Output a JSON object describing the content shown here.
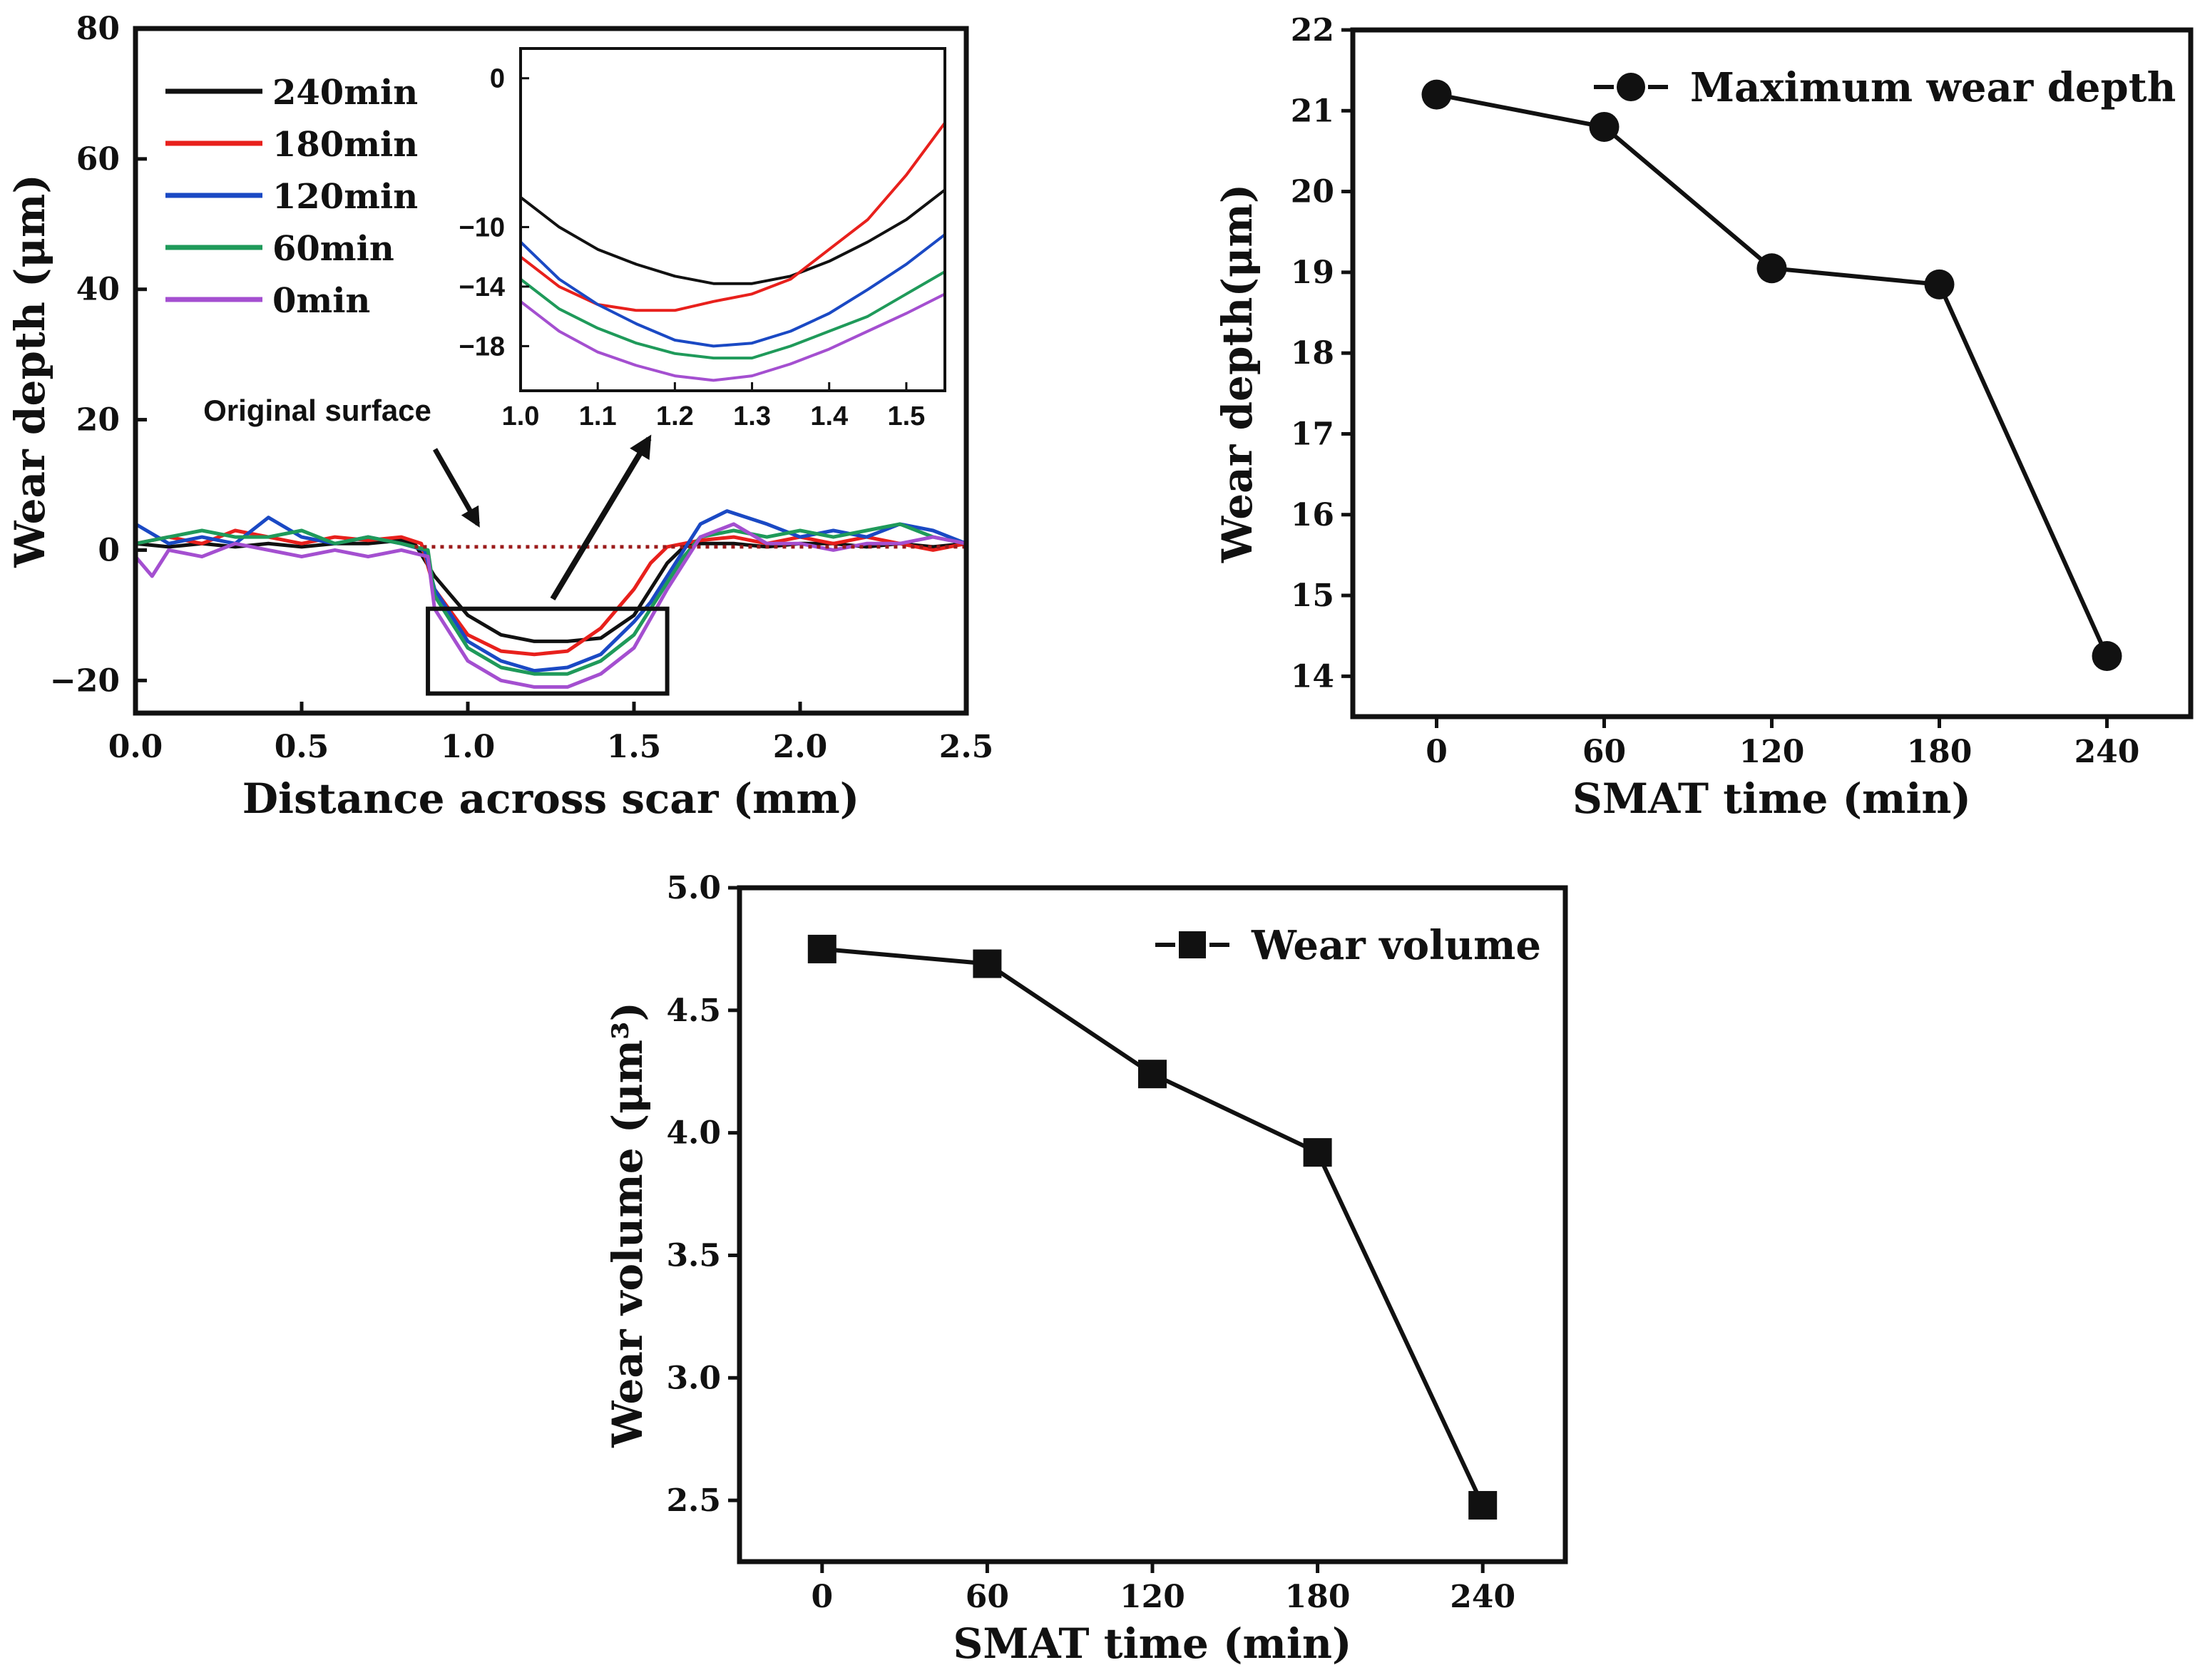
{
  "chart_data": [
    {
      "id": "profiles",
      "type": "line",
      "title": "",
      "xlabel": "Distance across scar (mm)",
      "ylabel": "Wear depth (μm)",
      "xlim": [
        0,
        2.5
      ],
      "ylim": [
        -25,
        80
      ],
      "xticks": [
        "0.0",
        "0.5",
        "1.0",
        "1.5",
        "2.0",
        "2.5"
      ],
      "yticks": [
        "−20",
        "0",
        "20",
        "40",
        "60",
        "80"
      ],
      "annotation": "Original surface",
      "original_surface_y": 0.5,
      "zoom_box": {
        "x": [
          0.88,
          1.6
        ],
        "y": [
          -22,
          -9
        ]
      },
      "series": [
        {
          "name": "240min",
          "color": "#111111",
          "x": [
            0,
            0.1,
            0.2,
            0.3,
            0.4,
            0.5,
            0.6,
            0.7,
            0.8,
            0.84,
            0.9,
            1.0,
            1.1,
            1.2,
            1.3,
            1.4,
            1.5,
            1.55,
            1.6,
            1.65,
            1.7,
            1.8,
            1.9,
            2.0,
            2.1,
            2.2,
            2.3,
            2.4,
            2.5
          ],
          "y": [
            1,
            0.5,
            1,
            0.5,
            1,
            0.5,
            1,
            1,
            1.5,
            1,
            -4,
            -10,
            -13,
            -14,
            -14,
            -13.5,
            -10,
            -6,
            -2,
            0.5,
            1,
            1,
            0.5,
            1,
            1,
            0.5,
            1,
            0.5,
            1
          ]
        },
        {
          "name": "180min",
          "color": "#e8201c",
          "x": [
            0,
            0.1,
            0.2,
            0.3,
            0.4,
            0.5,
            0.6,
            0.7,
            0.8,
            0.86,
            0.9,
            1.0,
            1.1,
            1.2,
            1.3,
            1.4,
            1.5,
            1.55,
            1.6,
            1.7,
            1.8,
            1.9,
            2.0,
            2.1,
            2.2,
            2.3,
            2.4,
            2.5
          ],
          "y": [
            1,
            2,
            1,
            3,
            2,
            1,
            2,
            1.5,
            2,
            1,
            -6,
            -13,
            -15.5,
            -16,
            -15.5,
            -12,
            -6,
            -2,
            0.5,
            1.5,
            2,
            1,
            2,
            1,
            2,
            1,
            0,
            1
          ]
        },
        {
          "name": "120min",
          "color": "#1a49c4",
          "x": [
            0,
            0.1,
            0.2,
            0.3,
            0.4,
            0.5,
            0.6,
            0.7,
            0.8,
            0.87,
            0.9,
            1.0,
            1.1,
            1.2,
            1.3,
            1.4,
            1.5,
            1.55,
            1.6,
            1.65,
            1.7,
            1.78,
            1.9,
            2.0,
            2.1,
            2.2,
            2.3,
            2.4,
            2.5
          ],
          "y": [
            4,
            1,
            2,
            1,
            5,
            2,
            1,
            2,
            1,
            0,
            -6,
            -14,
            -17,
            -18.5,
            -18,
            -16,
            -11,
            -8,
            -4,
            0,
            4,
            6,
            4,
            2,
            3,
            2,
            4,
            3,
            1
          ]
        },
        {
          "name": "60min",
          "color": "#1f9a5a",
          "x": [
            0,
            0.1,
            0.2,
            0.3,
            0.4,
            0.5,
            0.6,
            0.7,
            0.8,
            0.88,
            0.9,
            1.0,
            1.1,
            1.2,
            1.3,
            1.4,
            1.5,
            1.6,
            1.65,
            1.7,
            1.8,
            1.9,
            2.0,
            2.1,
            2.2,
            2.3,
            2.4,
            2.5
          ],
          "y": [
            1,
            2,
            3,
            2,
            2,
            3,
            1,
            2,
            1,
            0,
            -7,
            -15,
            -18,
            -19,
            -19,
            -17,
            -13,
            -5,
            -1,
            2,
            3,
            2,
            3,
            2,
            3,
            4,
            2,
            1
          ]
        },
        {
          "name": "0min",
          "color": "#a44fd0",
          "x": [
            0,
            0.05,
            0.1,
            0.2,
            0.3,
            0.4,
            0.5,
            0.6,
            0.7,
            0.8,
            0.88,
            0.9,
            1.0,
            1.1,
            1.2,
            1.3,
            1.4,
            1.5,
            1.6,
            1.65,
            1.7,
            1.8,
            1.9,
            2.0,
            2.1,
            2.2,
            2.3,
            2.4,
            2.5
          ],
          "y": [
            -1,
            -4,
            0,
            -1,
            1,
            0,
            -1,
            0,
            -1,
            0,
            -1,
            -9,
            -17,
            -20,
            -21,
            -21,
            -19,
            -15,
            -6,
            -2,
            2,
            4,
            1,
            1,
            0,
            1,
            1,
            2,
            1
          ]
        }
      ]
    },
    {
      "id": "inset",
      "type": "line",
      "title": "",
      "xlabel": "",
      "ylabel": "",
      "xlim": [
        1.0,
        1.55
      ],
      "ylim": [
        -21,
        2
      ],
      "xticks": [
        "1.0",
        "1.1",
        "1.2",
        "1.3",
        "1.4",
        "1.5"
      ],
      "yticks": [
        "0",
        "−10",
        "−14",
        "−18"
      ],
      "series": [
        {
          "name": "240min",
          "color": "#111111",
          "x": [
            1.0,
            1.05,
            1.1,
            1.15,
            1.2,
            1.25,
            1.3,
            1.35,
            1.4,
            1.45,
            1.5,
            1.55
          ],
          "y": [
            -8,
            -10,
            -11.5,
            -12.5,
            -13.3,
            -13.8,
            -13.8,
            -13.3,
            -12.3,
            -11,
            -9.5,
            -7.5
          ]
        },
        {
          "name": "180min",
          "color": "#e8201c",
          "x": [
            1.0,
            1.05,
            1.1,
            1.15,
            1.2,
            1.25,
            1.3,
            1.35,
            1.4,
            1.45,
            1.5,
            1.55
          ],
          "y": [
            -12,
            -14,
            -15.2,
            -15.6,
            -15.6,
            -15,
            -14.5,
            -13.5,
            -11.5,
            -9.5,
            -6.5,
            -3
          ]
        },
        {
          "name": "120min",
          "color": "#1a49c4",
          "x": [
            1.0,
            1.05,
            1.1,
            1.15,
            1.2,
            1.25,
            1.3,
            1.35,
            1.4,
            1.45,
            1.5,
            1.55
          ],
          "y": [
            -11,
            -13.5,
            -15.2,
            -16.5,
            -17.6,
            -18,
            -17.8,
            -17,
            -15.8,
            -14.2,
            -12.5,
            -10.5
          ]
        },
        {
          "name": "60min",
          "color": "#1f9a5a",
          "x": [
            1.0,
            1.05,
            1.1,
            1.15,
            1.2,
            1.25,
            1.3,
            1.35,
            1.4,
            1.45,
            1.5,
            1.55
          ],
          "y": [
            -13.5,
            -15.5,
            -16.8,
            -17.8,
            -18.5,
            -18.8,
            -18.8,
            -18,
            -17,
            -16,
            -14.5,
            -13
          ]
        },
        {
          "name": "0min",
          "color": "#a44fd0",
          "x": [
            1.0,
            1.05,
            1.1,
            1.15,
            1.2,
            1.25,
            1.3,
            1.35,
            1.4,
            1.45,
            1.5,
            1.55
          ],
          "y": [
            -15,
            -17,
            -18.4,
            -19.3,
            -20,
            -20.3,
            -20,
            -19.2,
            -18.2,
            -17,
            -15.8,
            -14.5
          ]
        }
      ]
    },
    {
      "id": "max-depth",
      "type": "line",
      "title": "",
      "xlabel": "SMAT time (min)",
      "ylabel": "Wear depth(μm)",
      "xlim": [
        -30,
        270
      ],
      "ylim": [
        13.5,
        22
      ],
      "xticks": [
        "0",
        "60",
        "120",
        "180",
        "240"
      ],
      "yticks": [
        "14",
        "15",
        "16",
        "17",
        "18",
        "19",
        "20",
        "21",
        "22"
      ],
      "marker": "circle",
      "legend": "top-right",
      "series": [
        {
          "name": "Maximum wear depth",
          "color": "#111111",
          "x": [
            0,
            60,
            120,
            180,
            240
          ],
          "y": [
            21.2,
            20.8,
            19.05,
            18.85,
            14.25
          ]
        }
      ]
    },
    {
      "id": "wear-volume",
      "type": "line",
      "title": "",
      "xlabel": "SMAT time (min)",
      "ylabel": "Wear volume (μm³)",
      "xlim": [
        -30,
        270
      ],
      "ylim": [
        2.25,
        5.0
      ],
      "xticks": [
        "0",
        "60",
        "120",
        "180",
        "240"
      ],
      "yticks": [
        "2.5",
        "3.0",
        "3.5",
        "4.0",
        "4.5",
        "5.0"
      ],
      "marker": "square",
      "legend": "top-right",
      "series": [
        {
          "name": "Wear volume",
          "color": "#111111",
          "x": [
            0,
            60,
            120,
            180,
            240
          ],
          "y": [
            4.75,
            4.69,
            4.24,
            3.92,
            2.48
          ]
        }
      ]
    }
  ]
}
